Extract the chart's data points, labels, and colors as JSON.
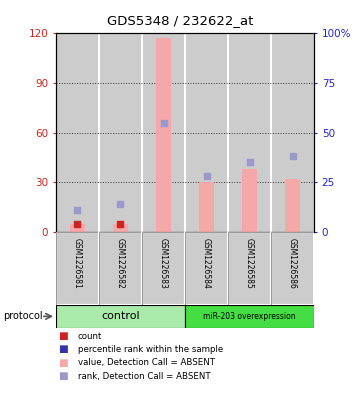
{
  "title": "GDS5348 / 232622_at",
  "samples": [
    "GSM1226581",
    "GSM1226582",
    "GSM1226583",
    "GSM1226584",
    "GSM1226585",
    "GSM1226586"
  ],
  "pink_bar_values": [
    5,
    5,
    117,
    30,
    38,
    32
  ],
  "blue_square_values_pct": [
    11,
    14,
    55,
    28,
    35,
    38
  ],
  "red_square_values": [
    5,
    5,
    0,
    0,
    0,
    0
  ],
  "ylim_left": [
    0,
    120
  ],
  "ylim_right": [
    0,
    100
  ],
  "yticks_left": [
    0,
    30,
    60,
    90,
    120
  ],
  "ytick_labels_left": [
    "0",
    "30",
    "60",
    "90",
    "120"
  ],
  "ytick_labels_right": [
    "0",
    "25",
    "50",
    "75",
    "100%"
  ],
  "yticks_right": [
    0,
    25,
    50,
    75,
    100
  ],
  "bg_color": "#ffffff",
  "bar_color": "#f4a8a8",
  "blue_sq_color": "#9999cc",
  "red_sq_color": "#cc2222",
  "dark_blue_sq_color": "#3333aa",
  "control_green": "#aaeaaa",
  "overexp_green": "#44dd44",
  "grid_color": "#333333",
  "left_label_color": "#cc2222",
  "right_label_color": "#2222cc",
  "gray_box_color": "#cccccc",
  "box_edge_color": "#888888",
  "legend_labels": [
    "count",
    "percentile rank within the sample",
    "value, Detection Call = ABSENT",
    "rank, Detection Call = ABSENT"
  ],
  "legend_colors": [
    "#cc2222",
    "#3333aa",
    "#f4a8a8",
    "#9999cc"
  ]
}
